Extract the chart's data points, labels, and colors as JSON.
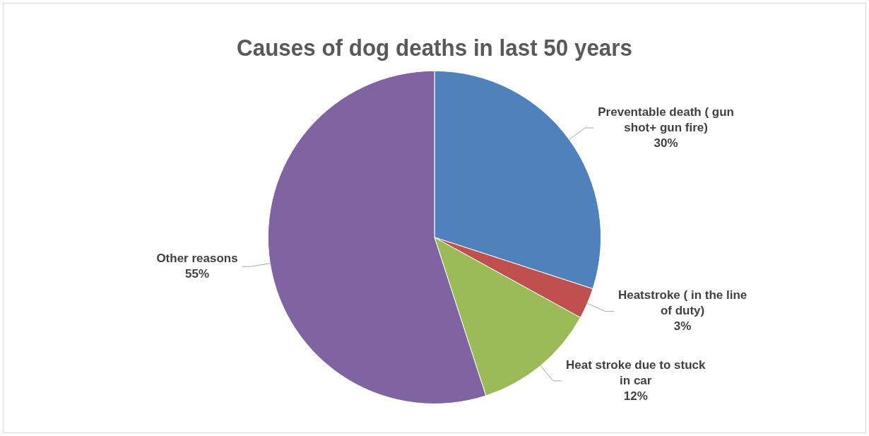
{
  "chart_data": {
    "type": "pie",
    "title": "Causes of dog deaths in last 50 years",
    "categories": [
      "Preventable death ( gun shot+ gun fire)",
      "Heatstroke ( in the line of duty)",
      "Heat stroke due to stuck in car",
      "Other reasons"
    ],
    "values": [
      30,
      3,
      12,
      55
    ],
    "colors": [
      "#4f81bd",
      "#c0504d",
      "#9bbb59",
      "#8064a2"
    ],
    "value_labels": [
      "30%",
      "3%",
      "12%",
      "55%"
    ],
    "legend": false
  }
}
